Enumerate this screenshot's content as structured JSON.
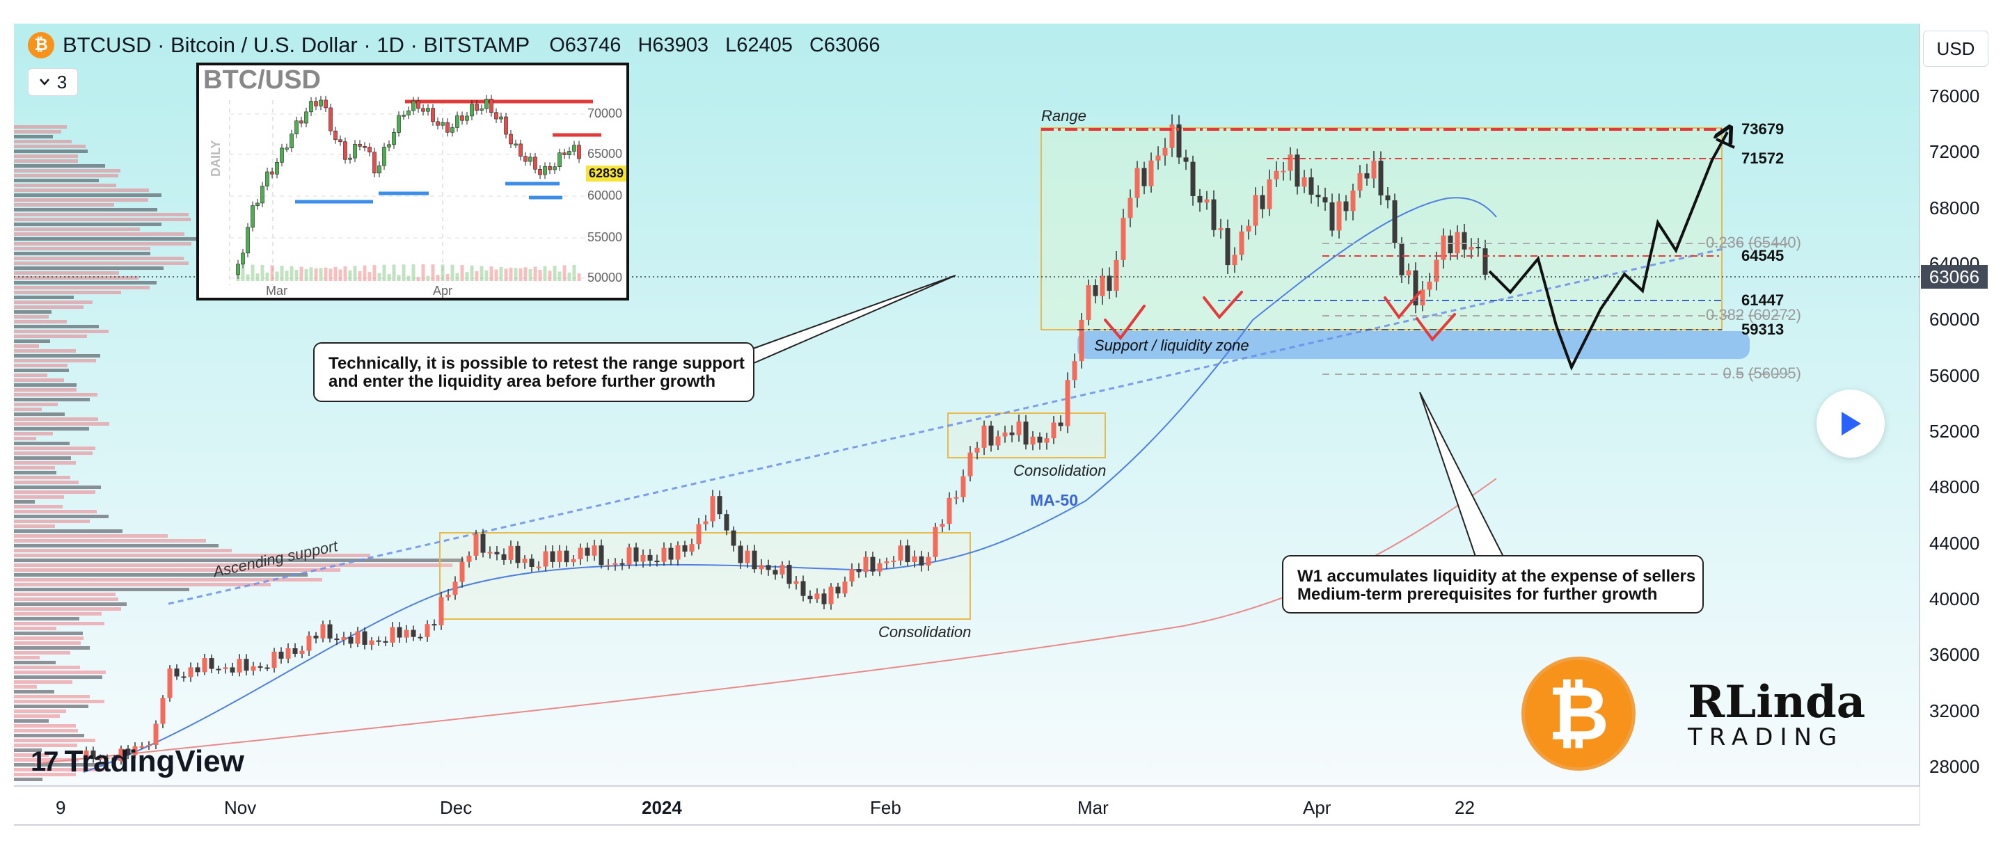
{
  "header": {
    "symbol_title": "BTCUSD · Bitcoin / U.S. Dollar · 1D · BITSTAMP",
    "open": "O63746",
    "high": "H63903",
    "low": "L62405",
    "close": "C63066",
    "indicator_count": "3",
    "currency": "USD",
    "coin_glyph": "₿"
  },
  "price_axis": {
    "labels": [
      "76000",
      "72000",
      "68000",
      "64000",
      "60000",
      "56000",
      "52000",
      "48000",
      "44000",
      "40000",
      "36000",
      "32000",
      "28000"
    ],
    "current_price": "63066"
  },
  "time_axis": {
    "labels": [
      "9",
      "Nov",
      "Dec",
      "2024",
      "Feb",
      "Mar",
      "Apr",
      "22"
    ]
  },
  "annotations": {
    "range": "Range",
    "support_zone": "Support / liquidity zone",
    "consolidation_1": "Consolidation",
    "consolidation_2": "Consolidation",
    "ascending_support": "Ascending support",
    "ma50": "MA-50"
  },
  "levels": [
    {
      "value": "73679",
      "fib": ""
    },
    {
      "value": "71572",
      "fib": ""
    },
    {
      "value": "64545",
      "fib": ""
    },
    {
      "value": "61447",
      "fib": ""
    },
    {
      "value": "59313",
      "fib": ""
    },
    {
      "value": "",
      "fib": "0.236 (65440)"
    },
    {
      "value": "",
      "fib": "0.382 (60272)"
    },
    {
      "value": "",
      "fib": "0.5 (56095)"
    }
  ],
  "callouts": {
    "retest": [
      "Technically, it is possible to retest the range support",
      "and enter the liquidity area before further growth"
    ],
    "w1": [
      "W1 accumulates liquidity at the expense of sellers",
      "Medium-term prerequisites for further growth"
    ]
  },
  "inset": {
    "title": "BTC/USD",
    "daily": "DAILY",
    "price_labels": [
      "70000",
      "65000",
      "60000",
      "55000",
      "50000"
    ],
    "price_tag": "62839",
    "months": [
      "Mar",
      "Apr"
    ]
  },
  "branding": {
    "tradingview": "TradingView",
    "tv_mark": "17",
    "brand_name": "RLinda",
    "brand_sub": "TRADING"
  },
  "colors": {
    "bull": "#f26b5b",
    "bear": "#3b3b3b",
    "ma50": "#4f7fe0",
    "ma200": "#e88a8a",
    "range_line": "#e03a3a",
    "accent": "#f7931a"
  },
  "chart_data": {
    "type": "candlestick",
    "title": "BTCUSD · Bitcoin / U.S. Dollar · 1D · BITSTAMP",
    "ylim": [
      26000,
      80000
    ],
    "y_ticks": [
      28000,
      32000,
      36000,
      40000,
      44000,
      48000,
      52000,
      56000,
      60000,
      64000,
      68000,
      72000,
      76000
    ],
    "x_ticks": [
      "9",
      "Nov",
      "Dec",
      "2024",
      "Feb",
      "Mar",
      "Apr",
      "22"
    ],
    "horizontal_levels": [
      73679,
      71572,
      65440,
      64545,
      61447,
      60272,
      59313,
      56095
    ],
    "current_price": 63066,
    "series": [
      {
        "name": "MA-50"
      }
    ],
    "grid": false
  }
}
